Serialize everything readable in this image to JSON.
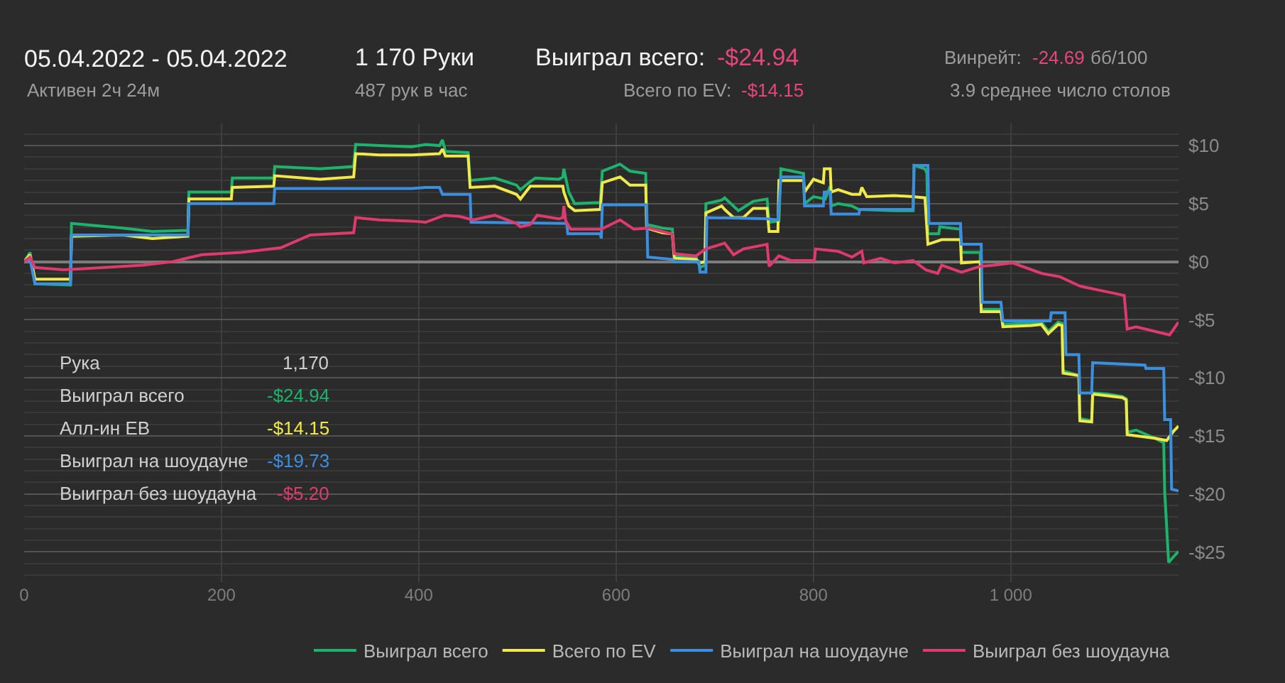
{
  "chart_data": {
    "type": "line",
    "title": "05.04.2022 - 05.04.2022",
    "subtitle": "Активен 2ч 24м",
    "annotations": [
      "1 170 Руки",
      "487 рук в час",
      "Выиграл всего:",
      "-$24.94",
      "Всего по EV:",
      "-$14.15",
      "Винрейт:",
      "-24.69",
      "бб/100",
      "3.9 среднее число столов",
      "Рука",
      "1,170",
      "Выиграл всего",
      "-$24.94",
      "Алл-ин ЕВ",
      "-$14.15",
      "Выиграл на шоудауне",
      "-$19.73",
      "Выиграл без шоудауна",
      "-$5.20"
    ],
    "series": [
      {
        "name": "Выиграл всего",
        "color": "#1db36b",
        "x": [
          0,
          6,
          11,
          47,
          48,
          100,
          130,
          166,
          167,
          210,
          211,
          253,
          254,
          300,
          334,
          336,
          360,
          393,
          407,
          421,
          424,
          427,
          450,
          452,
          477,
          499,
          503,
          513,
          518,
          542,
          546,
          547,
          552,
          558,
          584,
          586,
          604,
          614,
          630,
          631,
          647,
          657,
          659,
          681,
          685,
          690,
          691,
          707,
          710,
          724,
          739,
          753,
          755,
          765,
          767,
          790,
          791,
          800,
          812,
          817,
          818,
          825,
          839,
          846,
          882,
          901,
          902,
          913,
          915,
          916,
          927,
          928,
          949,
          950,
          969,
          970,
          990,
          992,
          1021,
          1031,
          1038,
          1048,
          1052,
          1053,
          1065,
          1069,
          1070,
          1082,
          1083,
          1098,
          1113,
          1117,
          1118,
          1127,
          1146,
          1155,
          1156,
          1160,
          1165,
          1170
        ],
        "values": [
          0,
          0.8,
          -1.9,
          -2.0,
          3.3,
          2.9,
          2.6,
          2.7,
          6.0,
          6.0,
          7.2,
          7.2,
          8.2,
          8.0,
          8.2,
          10.1,
          10.0,
          9.9,
          10.1,
          10.0,
          10.5,
          9.5,
          9.4,
          7.0,
          7.2,
          6.6,
          6.2,
          6.9,
          7.2,
          7.1,
          7.3,
          8.0,
          6.0,
          5.0,
          5.1,
          7.8,
          8.4,
          7.8,
          7.6,
          3.2,
          2.9,
          2.8,
          0.5,
          0.4,
          -0.5,
          -0.3,
          5.0,
          5.3,
          5.5,
          4.4,
          5.2,
          5.4,
          3.4,
          3.5,
          8.0,
          7.6,
          5.0,
          5.6,
          5.4,
          6.5,
          4.8,
          5.0,
          4.8,
          4.5,
          4.4,
          4.4,
          8.3,
          8.0,
          7.6,
          2.4,
          2.4,
          3.0,
          2.8,
          0.8,
          0.8,
          -4.1,
          -4.1,
          -5.4,
          -5.3,
          -5.2,
          -6.0,
          -5.2,
          -5.3,
          -9.4,
          -9.7,
          -9.8,
          -13.5,
          -13.7,
          -11.3,
          -11.4,
          -11.6,
          -11.8,
          -14.7,
          -14.5,
          -15.2,
          -15.6,
          -19.8,
          -25.9,
          -25.4,
          -24.94
        ]
      },
      {
        "name": "Всего по EV",
        "color": "#efe94a",
        "x": [
          0,
          6,
          11,
          47,
          48,
          100,
          130,
          166,
          167,
          210,
          211,
          253,
          254,
          300,
          334,
          336,
          360,
          393,
          421,
          424,
          427,
          450,
          452,
          477,
          499,
          503,
          513,
          546,
          547,
          552,
          558,
          584,
          586,
          604,
          614,
          630,
          631,
          647,
          657,
          659,
          681,
          685,
          690,
          691,
          707,
          710,
          719,
          729,
          739,
          753,
          755,
          764,
          765,
          790,
          791,
          800,
          810,
          811,
          817,
          818,
          825,
          839,
          847,
          849,
          854,
          882,
          901,
          913,
          916,
          930,
          949,
          950,
          969,
          970,
          990,
          992,
          1021,
          1031,
          1038,
          1048,
          1052,
          1053,
          1069,
          1070,
          1082,
          1083,
          1113,
          1117,
          1118,
          1146,
          1158,
          1165,
          1170
        ],
        "values": [
          0,
          0.6,
          -1.5,
          -1.5,
          2.2,
          2.3,
          2.0,
          2.2,
          5.4,
          5.4,
          6.4,
          6.5,
          7.4,
          7.1,
          7.3,
          9.3,
          9.2,
          9.2,
          9.3,
          9.7,
          9.1,
          9.1,
          6.4,
          6.5,
          5.8,
          5.4,
          6.5,
          6.5,
          6.0,
          4.8,
          4.4,
          4.5,
          6.8,
          7.3,
          6.6,
          6.6,
          2.9,
          2.5,
          2.4,
          0.3,
          0.2,
          -0.1,
          0.0,
          4.2,
          4.8,
          4.5,
          3.8,
          3.8,
          4.6,
          4.6,
          2.6,
          2.6,
          7.0,
          7.0,
          6.0,
          7.1,
          6.8,
          8.0,
          8.0,
          6.0,
          6.2,
          5.8,
          5.8,
          6.4,
          5.6,
          5.7,
          5.6,
          5.5,
          1.5,
          1.9,
          1.9,
          -0.1,
          0.0,
          -4.3,
          -4.3,
          -5.6,
          -5.5,
          -5.4,
          -6.2,
          -5.4,
          -5.5,
          -9.6,
          -9.8,
          -13.7,
          -13.8,
          -11.4,
          -11.7,
          -11.9,
          -14.9,
          -15.2,
          -15.4,
          -14.6,
          -14.15
        ]
      },
      {
        "name": "Выиграл на шоудауне",
        "color": "#3b8fe0",
        "x": [
          0,
          6,
          11,
          47,
          48,
          166,
          167,
          253,
          254,
          393,
          407,
          421,
          424,
          452,
          453,
          550,
          551,
          584,
          585,
          586,
          631,
          632,
          657,
          659,
          684,
          685,
          691,
          692,
          752,
          764,
          767,
          790,
          791,
          810,
          811,
          817,
          818,
          846,
          847,
          901,
          902,
          916,
          917,
          949,
          950,
          970,
          971,
          990,
          992,
          1040,
          1041,
          1055,
          1056,
          1069,
          1070,
          1082,
          1083,
          1136,
          1137,
          1155,
          1156,
          1162,
          1163,
          1170
        ],
        "values": [
          0,
          0.2,
          -1.9,
          -1.9,
          2.3,
          2.3,
          5.0,
          5.0,
          6.3,
          6.3,
          6.4,
          6.4,
          5.8,
          5.8,
          3.4,
          3.3,
          2.4,
          2.4,
          2.0,
          4.9,
          4.9,
          0.4,
          0.2,
          0.0,
          0.0,
          -0.9,
          -0.9,
          3.8,
          3.7,
          3.6,
          7.3,
          7.3,
          4.8,
          4.8,
          6.0,
          6.0,
          4.1,
          4.1,
          4.5,
          4.5,
          8.3,
          8.3,
          3.3,
          3.3,
          1.5,
          1.5,
          -3.5,
          -3.5,
          -5.1,
          -5.1,
          -4.4,
          -4.4,
          -8.0,
          -8.0,
          -11.3,
          -11.3,
          -8.7,
          -8.9,
          -9.2,
          -9.2,
          -13.6,
          -13.6,
          -19.6,
          -19.73
        ]
      },
      {
        "name": "Выиграл без шоудауна",
        "color": "#df3a6d",
        "x": [
          0,
          6,
          11,
          40,
          60,
          120,
          150,
          180,
          220,
          240,
          260,
          290,
          334,
          336,
          360,
          393,
          407,
          426,
          441,
          455,
          477,
          499,
          503,
          513,
          520,
          542,
          546,
          547,
          549,
          554,
          585,
          604,
          618,
          633,
          647,
          657,
          659,
          681,
          691,
          710,
          719,
          729,
          753,
          755,
          765,
          777,
          801,
          802,
          825,
          839,
          849,
          851,
          868,
          882,
          901,
          914,
          926,
          930,
          950,
          969,
          983,
          1002,
          1031,
          1050,
          1070,
          1098,
          1115,
          1118,
          1127,
          1146,
          1161,
          1170
        ],
        "values": [
          0,
          0.4,
          -0.5,
          -0.7,
          -0.6,
          -0.3,
          0.0,
          0.6,
          0.8,
          1.0,
          1.2,
          2.3,
          2.5,
          3.8,
          3.6,
          3.5,
          3.4,
          4.0,
          3.9,
          3.6,
          4.0,
          3.3,
          3.0,
          3.2,
          4.0,
          3.7,
          3.8,
          4.8,
          3.5,
          2.8,
          2.8,
          3.6,
          2.8,
          2.9,
          2.6,
          2.4,
          0.7,
          0.5,
          1.1,
          1.6,
          0.6,
          1.1,
          1.5,
          -0.4,
          0.5,
          0.1,
          0.1,
          1.1,
          0.9,
          0.4,
          0.9,
          -0.1,
          0.3,
          -0.1,
          0.1,
          -0.7,
          -1.0,
          -0.3,
          -0.9,
          -0.4,
          -0.3,
          -0.1,
          -1.0,
          -1.3,
          -2.1,
          -2.6,
          -2.9,
          -5.8,
          -5.6,
          -6.0,
          -6.3,
          -5.2
        ]
      }
    ],
    "xlim": [
      0,
      1170
    ],
    "xticks": [
      0,
      200,
      400,
      600,
      800,
      {
        "value": 1000,
        "label": "1 000"
      }
    ],
    "ylim": [
      -27.6,
      11.9
    ],
    "yticks": [
      {
        "value": 10,
        "label": "$10"
      },
      {
        "value": 5,
        "label": "$5"
      },
      {
        "value": 0,
        "label": "$0"
      },
      {
        "value": -5,
        "label": "-$5"
      },
      {
        "value": -10,
        "label": "-$10"
      },
      {
        "value": -15,
        "label": "-$15"
      },
      {
        "value": -20,
        "label": "-$20"
      },
      {
        "value": -25,
        "label": "-$25"
      },
      {
        "value": 11,
        "label": null
      },
      {
        "value": 9,
        "label": null
      },
      {
        "value": 8,
        "label": null
      },
      {
        "value": 7,
        "label": null
      },
      {
        "value": 6,
        "label": null
      },
      {
        "value": 4,
        "label": null
      },
      {
        "value": 3,
        "label": null
      },
      {
        "value": 2,
        "label": null
      },
      {
        "value": 1,
        "label": null
      },
      {
        "value": -1,
        "label": null
      },
      {
        "value": -2,
        "label": null
      },
      {
        "value": -3,
        "label": null
      },
      {
        "value": -4,
        "label": null
      },
      {
        "value": -6,
        "label": null
      },
      {
        "value": -7,
        "label": null
      },
      {
        "value": -8,
        "label": null
      },
      {
        "value": -9,
        "label": null
      },
      {
        "value": -11,
        "label": null
      },
      {
        "value": -12,
        "label": null
      },
      {
        "value": -13,
        "label": null
      },
      {
        "value": -14,
        "label": null
      },
      {
        "value": -16,
        "label": null
      },
      {
        "value": -17,
        "label": null
      },
      {
        "value": -18,
        "label": null
      },
      {
        "value": -19,
        "label": null
      },
      {
        "value": -21,
        "label": null
      },
      {
        "value": -22,
        "label": null
      },
      {
        "value": -23,
        "label": null
      },
      {
        "value": -24,
        "label": null
      },
      {
        "value": -26,
        "label": null
      },
      {
        "value": -27,
        "label": null
      }
    ],
    "grid": true,
    "legend": "bottom"
  }
}
